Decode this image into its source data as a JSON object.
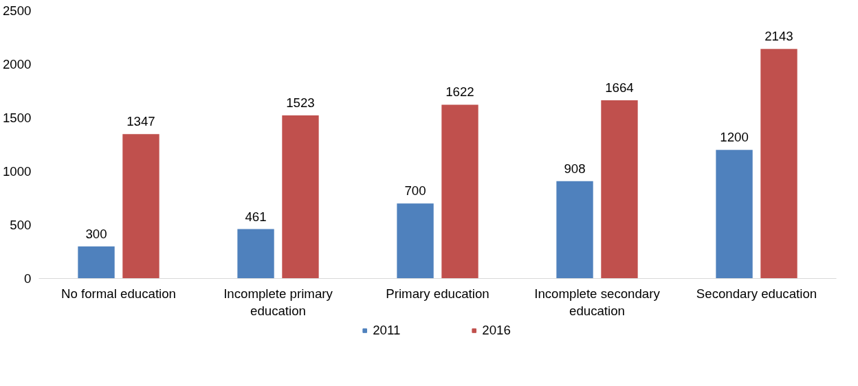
{
  "chart_data": {
    "type": "bar",
    "categories": [
      "No formal education",
      "Incomplete primary education",
      "Primary education",
      "Incomplete secondary education",
      "Secondary education"
    ],
    "series": [
      {
        "name": "2011",
        "color": "#4f81bd",
        "values": [
          300,
          461,
          700,
          908,
          1200
        ]
      },
      {
        "name": "2016",
        "color": "#c0504d",
        "values": [
          1347,
          1523,
          1622,
          1664,
          2143
        ]
      }
    ],
    "ylim": [
      0,
      2500
    ],
    "yticks": [
      0,
      500,
      1000,
      1500,
      2000,
      2500
    ],
    "data_labels": true,
    "legend": "bottom",
    "grid": false
  }
}
